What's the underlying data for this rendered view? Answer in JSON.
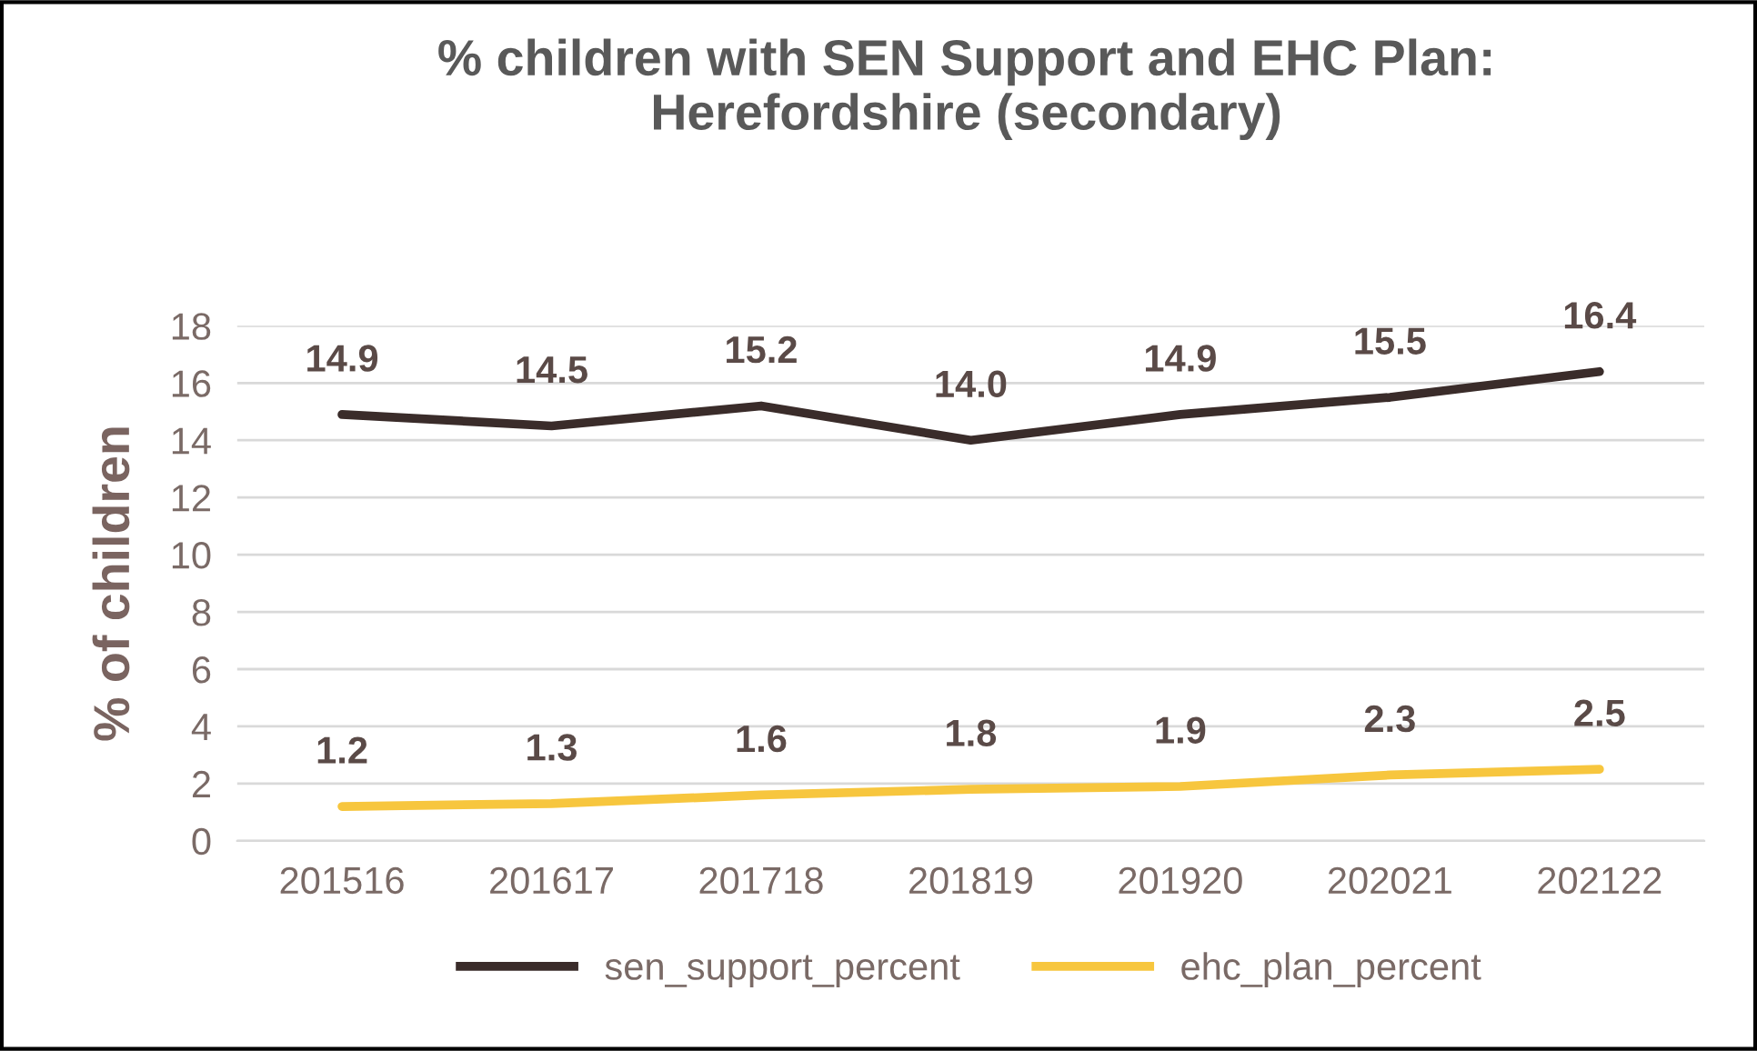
{
  "chart_data": {
    "type": "line",
    "title": "% children with SEN Support and EHC Plan:\nHerefordshire (secondary)",
    "ylabel": "% of children",
    "categories": [
      "201516",
      "201617",
      "201718",
      "201819",
      "201920",
      "202021",
      "202122"
    ],
    "series": [
      {
        "name": "sen_support_percent",
        "color": "#3a2c2a",
        "values": [
          14.9,
          14.5,
          15.2,
          14.0,
          14.9,
          15.5,
          16.4
        ],
        "value_labels": [
          "14.9",
          "14.5",
          "15.2",
          "14.0",
          "14.9",
          "15.5",
          "16.4"
        ]
      },
      {
        "name": "ehc_plan_percent",
        "color": "#f7c63e",
        "values": [
          1.2,
          1.3,
          1.6,
          1.8,
          1.9,
          2.3,
          2.5
        ],
        "value_labels": [
          "1.2",
          "1.3",
          "1.6",
          "1.8",
          "1.9",
          "2.3",
          "2.5"
        ]
      }
    ],
    "ylim": [
      0,
      18
    ],
    "yticks": [
      0,
      2,
      4,
      6,
      8,
      10,
      12,
      14,
      16,
      18
    ],
    "grid": "y",
    "legend": "bottom",
    "marker": "none",
    "line_style": "solid"
  }
}
